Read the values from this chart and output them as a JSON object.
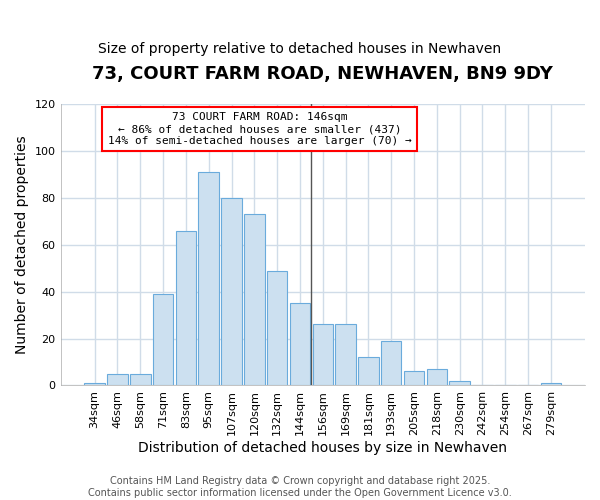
{
  "title": "73, COURT FARM ROAD, NEWHAVEN, BN9 9DY",
  "subtitle": "Size of property relative to detached houses in Newhaven",
  "xlabel": "Distribution of detached houses by size in Newhaven",
  "ylabel": "Number of detached properties",
  "bar_labels": [
    "34sqm",
    "46sqm",
    "58sqm",
    "71sqm",
    "83sqm",
    "95sqm",
    "107sqm",
    "120sqm",
    "132sqm",
    "144sqm",
    "156sqm",
    "169sqm",
    "181sqm",
    "193sqm",
    "205sqm",
    "218sqm",
    "230sqm",
    "242sqm",
    "254sqm",
    "267sqm",
    "279sqm"
  ],
  "bar_values": [
    1,
    5,
    5,
    39,
    66,
    91,
    80,
    73,
    49,
    35,
    26,
    26,
    12,
    19,
    6,
    7,
    2,
    0,
    0,
    0,
    1
  ],
  "bar_color": "#cce0f0",
  "bar_edge_color": "#6aabdc",
  "vline_x_index": 9,
  "vline_color": "#555555",
  "annotation_box_text": "73 COURT FARM ROAD: 146sqm\n← 86% of detached houses are smaller (437)\n14% of semi-detached houses are larger (70) →",
  "annotation_box_color": "white",
  "annotation_box_edge_color": "red",
  "ylim": [
    0,
    120
  ],
  "yticks": [
    0,
    20,
    40,
    60,
    80,
    100,
    120
  ],
  "footer_text": "Contains HM Land Registry data © Crown copyright and database right 2025.\nContains public sector information licensed under the Open Government Licence v3.0.",
  "bg_color": "#ffffff",
  "plot_bg_color": "#ffffff",
  "grid_color": "#d0dce8",
  "title_fontsize": 13,
  "subtitle_fontsize": 10,
  "axis_label_fontsize": 10,
  "tick_fontsize": 8,
  "footer_fontsize": 7
}
